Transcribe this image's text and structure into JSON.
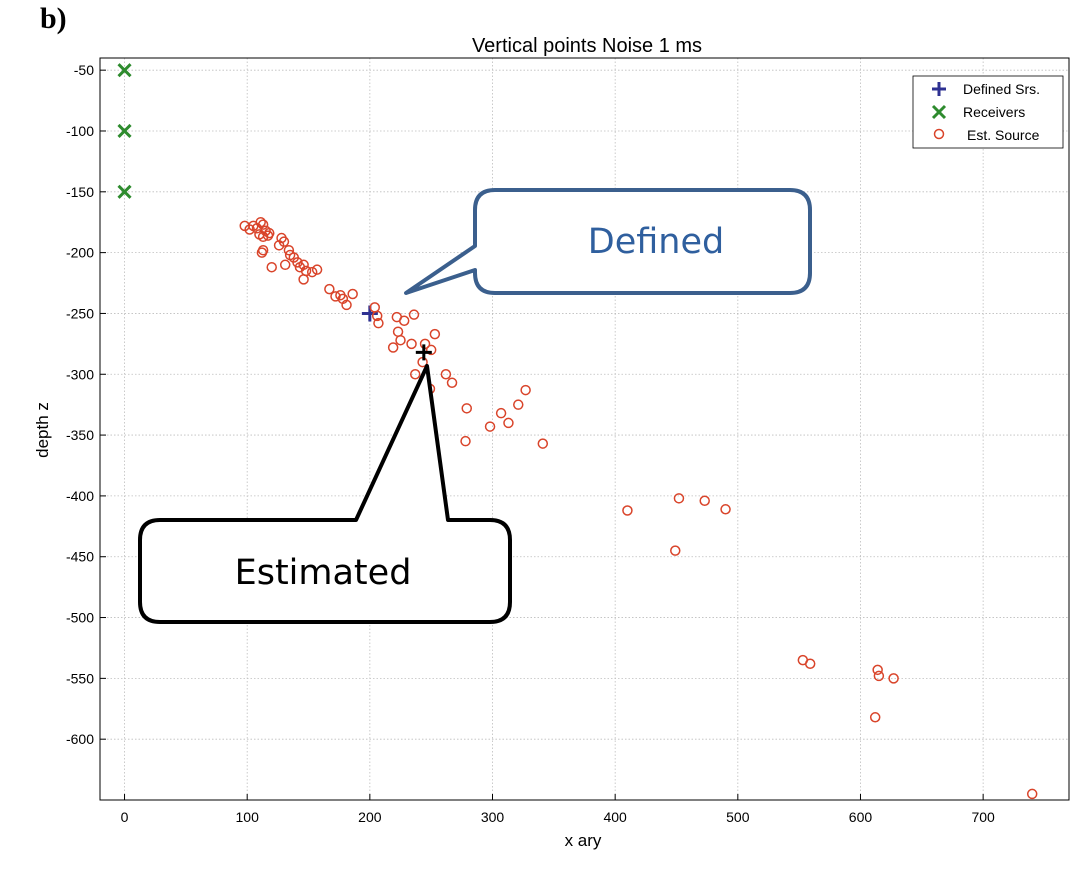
{
  "panel_label": "b)",
  "chart_data": {
    "type": "scatter",
    "title": "Vertical points  Noise 1 ms",
    "xlabel": "x ary",
    "ylabel": "depth z",
    "xlim": [
      -20,
      770
    ],
    "ylim": [
      -650,
      -40
    ],
    "xticks": [
      0,
      100,
      200,
      300,
      400,
      500,
      600,
      700
    ],
    "yticks": [
      -50,
      -100,
      -150,
      -200,
      -250,
      -300,
      -350,
      -400,
      -450,
      -500,
      -550,
      -600
    ],
    "grid": true,
    "legend_position": "top-right",
    "series": [
      {
        "name": "Defined Srs.",
        "marker": "plus",
        "color": "#2e3192",
        "points": [
          [
            200,
            -250
          ]
        ]
      },
      {
        "name": "Receivers",
        "marker": "x",
        "color": "#2e8b2e",
        "points": [
          [
            0,
            -50
          ],
          [
            0,
            -100
          ],
          [
            0,
            -150
          ]
        ]
      },
      {
        "name": "Est. Source",
        "marker": "circle",
        "color": "#d9442a",
        "points": [
          [
            98,
            -178
          ],
          [
            102,
            -181
          ],
          [
            105,
            -178
          ],
          [
            108,
            -180
          ],
          [
            111,
            -175
          ],
          [
            113,
            -177
          ],
          [
            115,
            -182
          ],
          [
            118,
            -184
          ],
          [
            110,
            -185
          ],
          [
            113,
            -187
          ],
          [
            117,
            -186
          ],
          [
            113,
            -198
          ],
          [
            112,
            -200
          ],
          [
            128,
            -188
          ],
          [
            130,
            -191
          ],
          [
            126,
            -194
          ],
          [
            134,
            -198
          ],
          [
            135,
            -202
          ],
          [
            138,
            -204
          ],
          [
            141,
            -208
          ],
          [
            143,
            -212
          ],
          [
            146,
            -210
          ],
          [
            148,
            -215
          ],
          [
            153,
            -216
          ],
          [
            157,
            -214
          ],
          [
            146,
            -222
          ],
          [
            120,
            -212
          ],
          [
            131,
            -210
          ],
          [
            167,
            -230
          ],
          [
            172,
            -236
          ],
          [
            176,
            -235
          ],
          [
            178,
            -238
          ],
          [
            181,
            -243
          ],
          [
            186,
            -234
          ],
          [
            204,
            -245
          ],
          [
            206,
            -252
          ],
          [
            207,
            -258
          ],
          [
            222,
            -253
          ],
          [
            228,
            -256
          ],
          [
            236,
            -251
          ],
          [
            219,
            -278
          ],
          [
            223,
            -265
          ],
          [
            225,
            -272
          ],
          [
            234,
            -275
          ],
          [
            245,
            -275
          ],
          [
            250,
            -280
          ],
          [
            253,
            -267
          ],
          [
            243,
            -290
          ],
          [
            237,
            -300
          ],
          [
            249,
            -312
          ],
          [
            246,
            -318
          ],
          [
            262,
            -300
          ],
          [
            267,
            -307
          ],
          [
            279,
            -328
          ],
          [
            278,
            -355
          ],
          [
            298,
            -343
          ],
          [
            307,
            -332
          ],
          [
            313,
            -340
          ],
          [
            321,
            -325
          ],
          [
            327,
            -313
          ],
          [
            341,
            -357
          ],
          [
            410,
            -412
          ],
          [
            452,
            -402
          ],
          [
            473,
            -404
          ],
          [
            490,
            -411
          ],
          [
            449,
            -445
          ],
          [
            553,
            -535
          ],
          [
            559,
            -538
          ],
          [
            614,
            -543
          ],
          [
            615,
            -548
          ],
          [
            627,
            -550
          ],
          [
            612,
            -582
          ],
          [
            740,
            -645
          ]
        ]
      },
      {
        "name": "",
        "marker": "plus",
        "color": "#000000",
        "points": [
          [
            244,
            -282
          ]
        ]
      }
    ],
    "annotations": [
      {
        "text": "Defined",
        "color": "#2f5f9e"
      },
      {
        "text": "Estimated",
        "color": "#000000"
      }
    ]
  }
}
